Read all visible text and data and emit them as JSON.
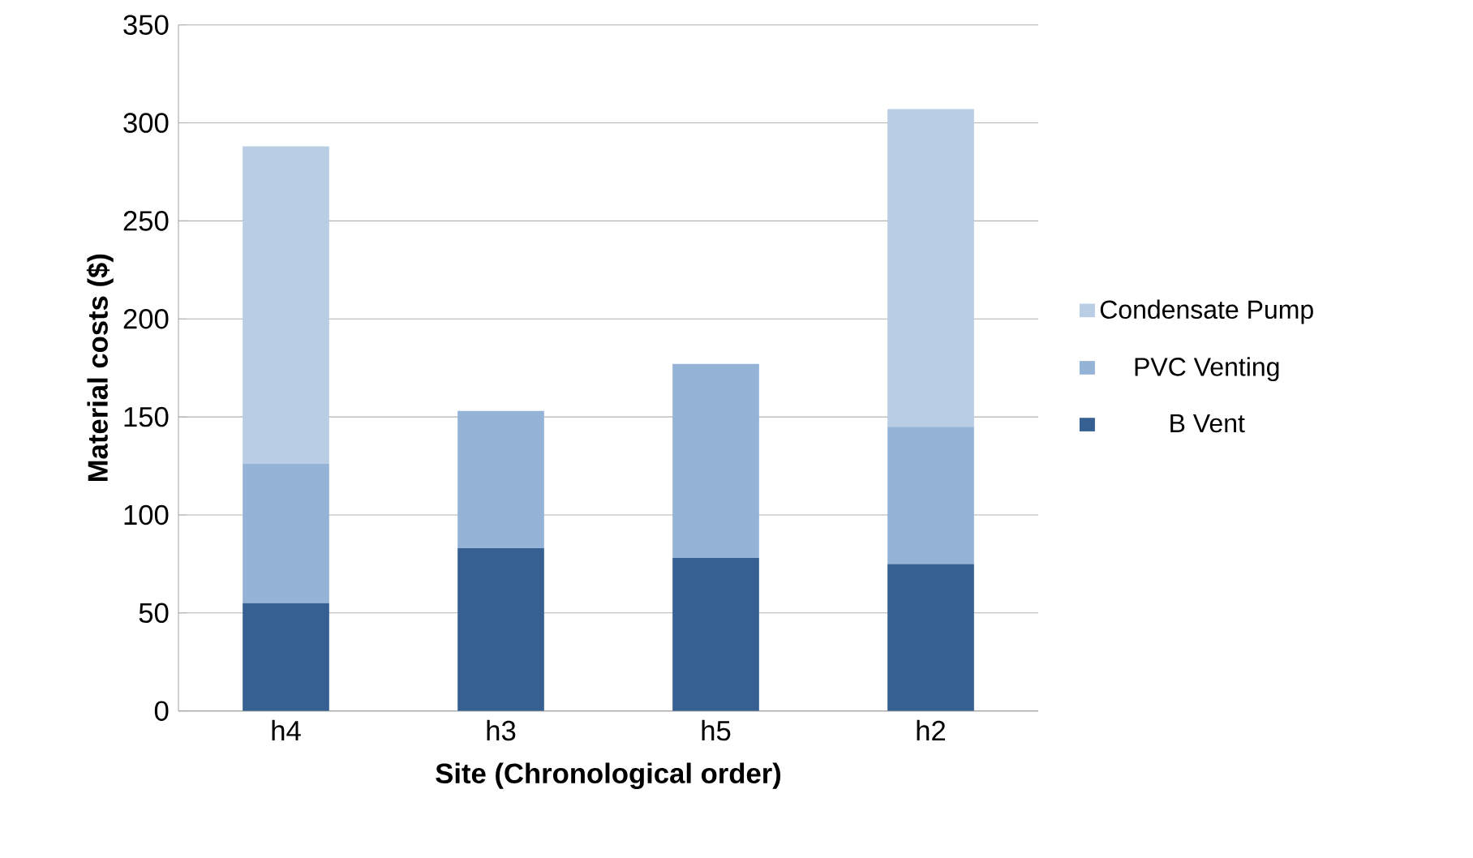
{
  "chart_data": {
    "type": "bar",
    "stacked": true,
    "xlabel": "Site (Chronological order)",
    "ylabel": "Material costs ($)",
    "categories": [
      "h4",
      "h3",
      "h5",
      "h2"
    ],
    "series": [
      {
        "name": "B Vent",
        "color": "#366092",
        "values": [
          55,
          83,
          78,
          75
        ]
      },
      {
        "name": "PVC Venting",
        "color": "#95b3d7",
        "values": [
          71,
          70,
          99,
          70
        ]
      },
      {
        "name": "Condensate Pump",
        "color": "#b9cde5",
        "values": [
          162,
          null,
          null,
          162
        ]
      }
    ],
    "ylim": [
      0,
      350
    ],
    "yticks": [
      0,
      50,
      100,
      150,
      200,
      250,
      300,
      350
    ],
    "grid": "y",
    "legend": "right"
  }
}
